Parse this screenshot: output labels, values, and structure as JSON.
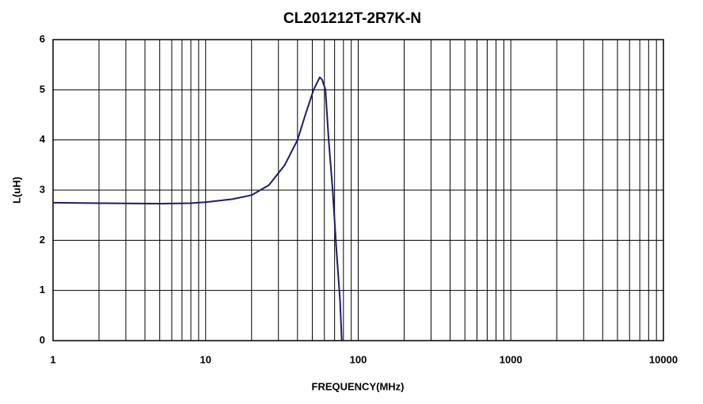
{
  "chart_data": {
    "type": "line",
    "title": "CL201212T-2R7K-N",
    "x_label": "FREQUENCY(MHz)",
    "y_label": "L(uH)",
    "x_scale": "log",
    "x": [
      1,
      2,
      5,
      8,
      10,
      15,
      20,
      26,
      33,
      40,
      45,
      51,
      56,
      58,
      61,
      64,
      68,
      72,
      76,
      78
    ],
    "series": [
      {
        "name": "L",
        "color": "#1c1c6b",
        "values": [
          2.75,
          2.74,
          2.73,
          2.74,
          2.76,
          2.82,
          2.9,
          3.1,
          3.5,
          4.0,
          4.5,
          5.0,
          5.25,
          5.2,
          5.0,
          4.0,
          3.0,
          1.8,
          0.8,
          0
        ]
      }
    ],
    "xlim": [
      1,
      10000
    ],
    "xticks": [
      1,
      10,
      100,
      1000,
      10000
    ],
    "ylim": [
      0,
      6
    ],
    "yticks": [
      0,
      1,
      2,
      3,
      4,
      5,
      6
    ],
    "grid": true
  }
}
